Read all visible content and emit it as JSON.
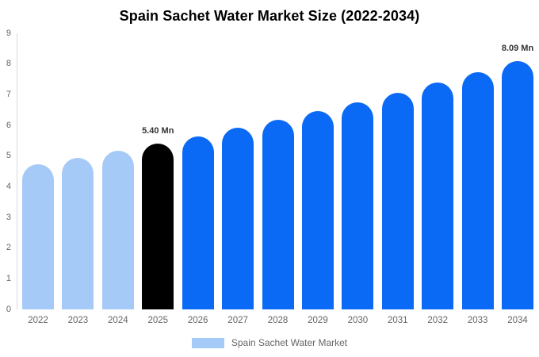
{
  "chart_data": {
    "type": "bar",
    "title": "Spain Sachet Water Market Size (2022-2034)",
    "categories": [
      "2022",
      "2023",
      "2024",
      "2025",
      "2026",
      "2027",
      "2028",
      "2029",
      "2030",
      "2031",
      "2032",
      "2033",
      "2034"
    ],
    "values": [
      4.72,
      4.94,
      5.16,
      5.4,
      5.65,
      5.91,
      6.18,
      6.46,
      6.76,
      7.07,
      7.39,
      7.73,
      8.09
    ],
    "bar_colors": [
      "#A6CAF7",
      "#A6CAF7",
      "#A6CAF7",
      "#000000",
      "#0A6AF5",
      "#0A6AF5",
      "#0A6AF5",
      "#0A6AF5",
      "#0A6AF5",
      "#0A6AF5",
      "#0A6AF5",
      "#0A6AF5",
      "#0A6AF5"
    ],
    "data_labels": [
      "",
      "",
      "",
      "5.40 Mn",
      "",
      "",
      "",
      "",
      "",
      "",
      "",
      "",
      "8.09 Mn"
    ],
    "xlabel": "",
    "ylabel": "",
    "ylim": [
      0,
      9
    ],
    "ytick_values": [
      0,
      1,
      2,
      3,
      4,
      5,
      6,
      7,
      8,
      9
    ],
    "grid": false,
    "legend": {
      "position": "bottom",
      "entries": [
        {
          "label": "Spain Sachet Water Market",
          "swatch_color": "#A6CAF7"
        }
      ]
    }
  },
  "colors": {
    "background": "#FFFFFF",
    "title_text": "#000000",
    "axis_line": "#D9D9D9",
    "tick_label_text": "#666666",
    "legend_label_text": "#666666",
    "data_label_text": "#333333",
    "series_light_blue": "#A6CAF7",
    "series_blue": "#0A6AF5",
    "series_highlight_black": "#000000"
  }
}
